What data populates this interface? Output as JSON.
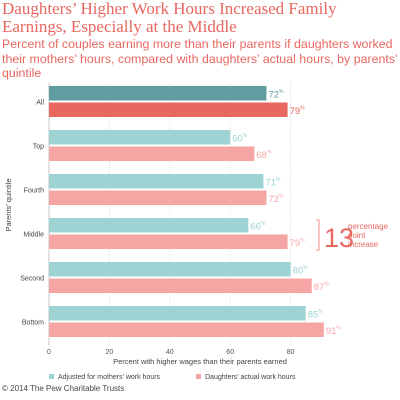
{
  "header": {
    "title": "Daughters’ Higher Work Hours Increased Family Earnings, Especially at the Middle",
    "subtitle": "Percent of couples earning more than their parents if daughters worked their mothers’ hours, compared with daughters’ actual hours, by parents’ quintile"
  },
  "annotation": {
    "value": "13",
    "text_1": "percentage",
    "text_2": "point",
    "text_3": "increase"
  },
  "footer": {
    "credit": "© 2014 The Pew Charitable Trusts"
  },
  "chart_data": {
    "type": "bar",
    "orientation": "horizontal",
    "ylabel": "Parents’ quintile",
    "xlabel": "Percent with higher wages than their parents earned",
    "xlim": [
      0,
      100
    ],
    "xticks": [
      0,
      20,
      40,
      60,
      80
    ],
    "value_suffix": "%",
    "categories": [
      "All",
      "Top",
      "Fourth",
      "Middle",
      "Second",
      "Bottom"
    ],
    "series": [
      {
        "name": "Adjusted for mothers’ work hours",
        "values": [
          72,
          60,
          71,
          66,
          80,
          85
        ],
        "colors": [
          "#5f9da0",
          "#9ed3d3",
          "#9ed3d3",
          "#9ed3d3",
          "#9ed3d3",
          "#9ed3d3"
        ]
      },
      {
        "name": "Daughters’ actual work hours",
        "values": [
          79,
          68,
          72,
          79,
          87,
          91
        ],
        "colors": [
          "#e8675f",
          "#f5a6a4",
          "#f5a6a4",
          "#f5a6a4",
          "#f5a6a4",
          "#f5a6a4"
        ]
      }
    ],
    "legend": "bottom",
    "grid": true
  }
}
